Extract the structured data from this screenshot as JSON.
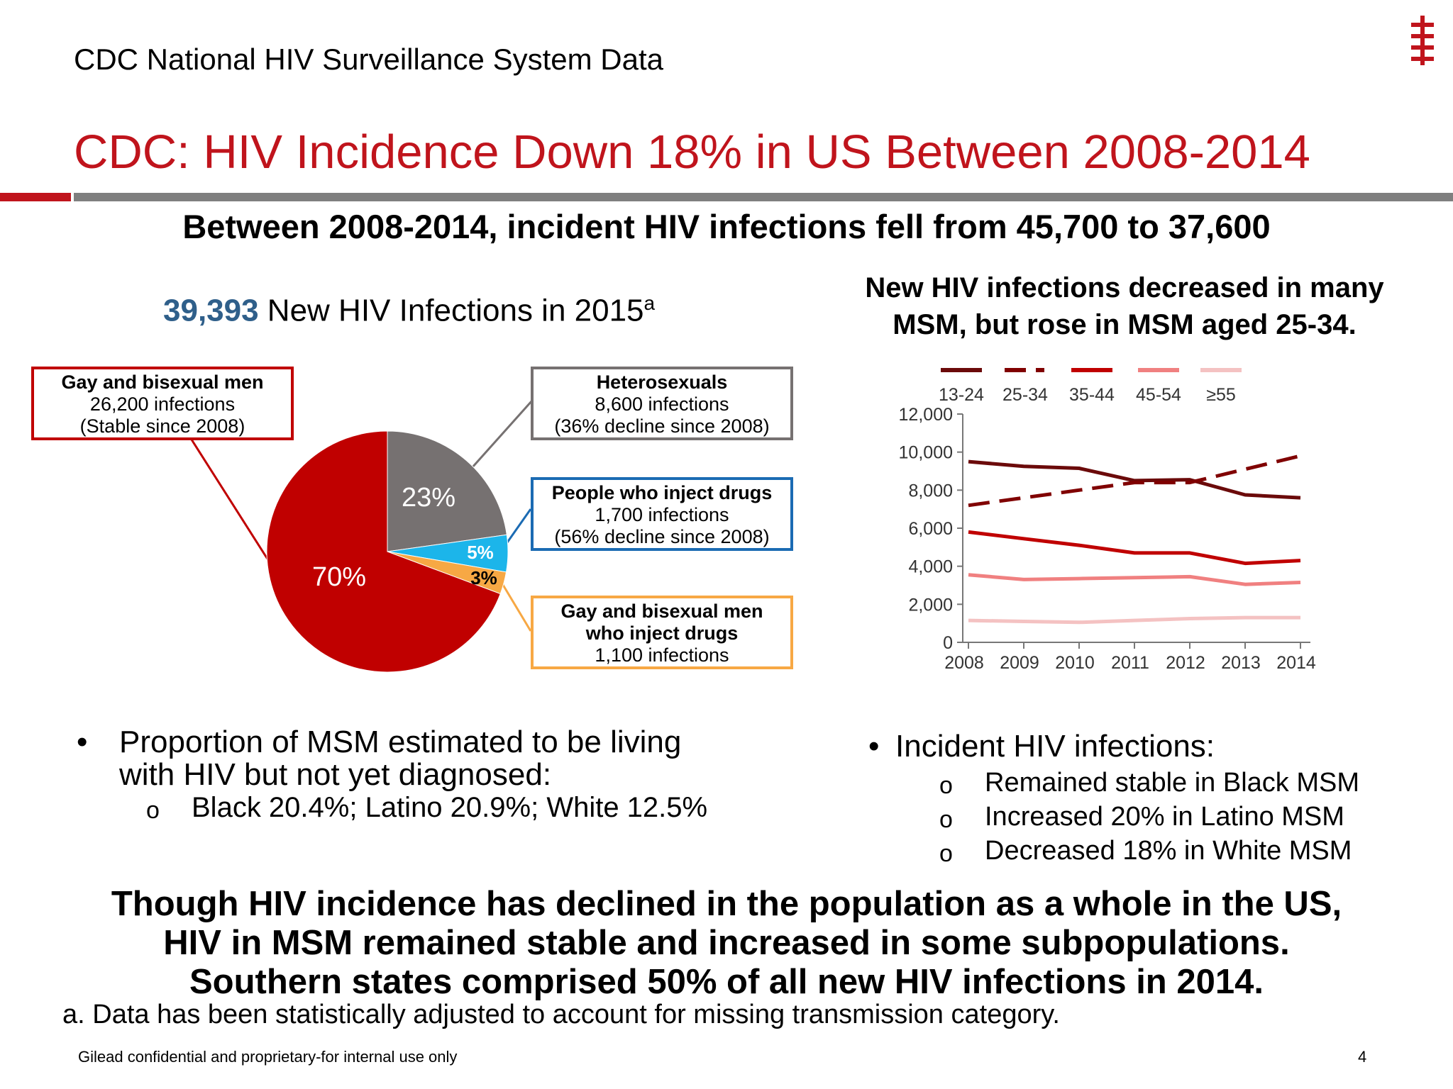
{
  "header": {
    "title": "CDC National HIV Surveillance System Data"
  },
  "main_title": "CDC: HIV Incidence Down 18% in US Between 2008-2014",
  "subtitle": "Between 2008-2014, incident HIV infections fell from 45,700 to 37,600",
  "pie_heading": {
    "number": "39,393",
    "text": " New HIV Infections in 2015",
    "superscript": "a"
  },
  "line_heading": "New HIV infections decreased in many MSM, but rose in MSM aged 25-34.",
  "callouts": {
    "msm": {
      "title": "Gay and bisexual men",
      "line2": "26,200 infections",
      "line3": "(Stable since 2008)"
    },
    "hetero": {
      "title": "Heterosexuals",
      "line2": "8,600 infections",
      "line3": "(36% decline since 2008)"
    },
    "pwid": {
      "title": "People who inject drugs",
      "line2": "1,700 infections",
      "line3": "(56% decline since 2008)"
    },
    "msm_idu": {
      "title": "Gay and bisexual men",
      "line2": "who inject drugs",
      "line3": "1,100 infections"
    }
  },
  "left_bullets": {
    "main": "Proportion of MSM estimated to be living with HIV but not yet diagnosed:",
    "sub": "Black 20.4%; Latino 20.9%; White 12.5%"
  },
  "right_bullets": {
    "main": "Incident HIV infections:",
    "subs": [
      "Remained stable in Black MSM",
      "Increased 20% in Latino MSM",
      "Decreased 18% in White MSM"
    ]
  },
  "closing": [
    "Though HIV incidence has declined in the population as a whole in the US,",
    "HIV in MSM remained stable and increased in some subpopulations.",
    "Southern states comprised 50% of all new HIV infections in 2014."
  ],
  "footnote": "a. Data has been statistically adjusted to account for missing transmission category.",
  "footer": {
    "confidential": "Gilead confidential and proprietary-for internal use only",
    "page": "4"
  },
  "chart_data": [
    {
      "type": "pie",
      "slices": [
        {
          "label": "70%",
          "value": 70,
          "color": "#c00000"
        },
        {
          "label": "23%",
          "value": 23,
          "color": "#767171"
        },
        {
          "label": "5%",
          "value": 5,
          "color": "#1cb5ea"
        },
        {
          "label": "3%",
          "value": 3,
          "color": "#f7a844"
        }
      ]
    },
    {
      "type": "line",
      "x": [
        2008,
        2009,
        2010,
        2011,
        2012,
        2013,
        2014
      ],
      "xticks": [
        "2008",
        "2009",
        "2010",
        "2011",
        "2012",
        "2013",
        "2014"
      ],
      "yticks": [
        "0",
        "2,000",
        "4,000",
        "6,000",
        "8,000",
        "10,000",
        "12,000"
      ],
      "ylim": [
        0,
        12000
      ],
      "legend_position": "top",
      "series": [
        {
          "name": "13-24",
          "values": [
            9500,
            9250,
            9150,
            8500,
            8550,
            7750,
            7600
          ],
          "color": "#6b0a0a",
          "dash": "none"
        },
        {
          "name": "25-34",
          "values": [
            7200,
            null,
            null,
            8400,
            8400,
            null,
            9800
          ],
          "color": "#800000",
          "dash": "dash"
        },
        {
          "name": "35-44",
          "values": [
            5800,
            5450,
            5100,
            4700,
            4700,
            4150,
            4300
          ],
          "color": "#c00000",
          "dash": "none"
        },
        {
          "name": "45-54",
          "values": [
            3550,
            3300,
            3350,
            3400,
            3450,
            3050,
            3150
          ],
          "color": "#f08080",
          "dash": "none"
        },
        {
          "name": "≥55",
          "values": [
            1150,
            1100,
            1050,
            1150,
            1250,
            1300,
            1300
          ],
          "color": "#f4c2c2",
          "dash": "none"
        }
      ]
    }
  ]
}
